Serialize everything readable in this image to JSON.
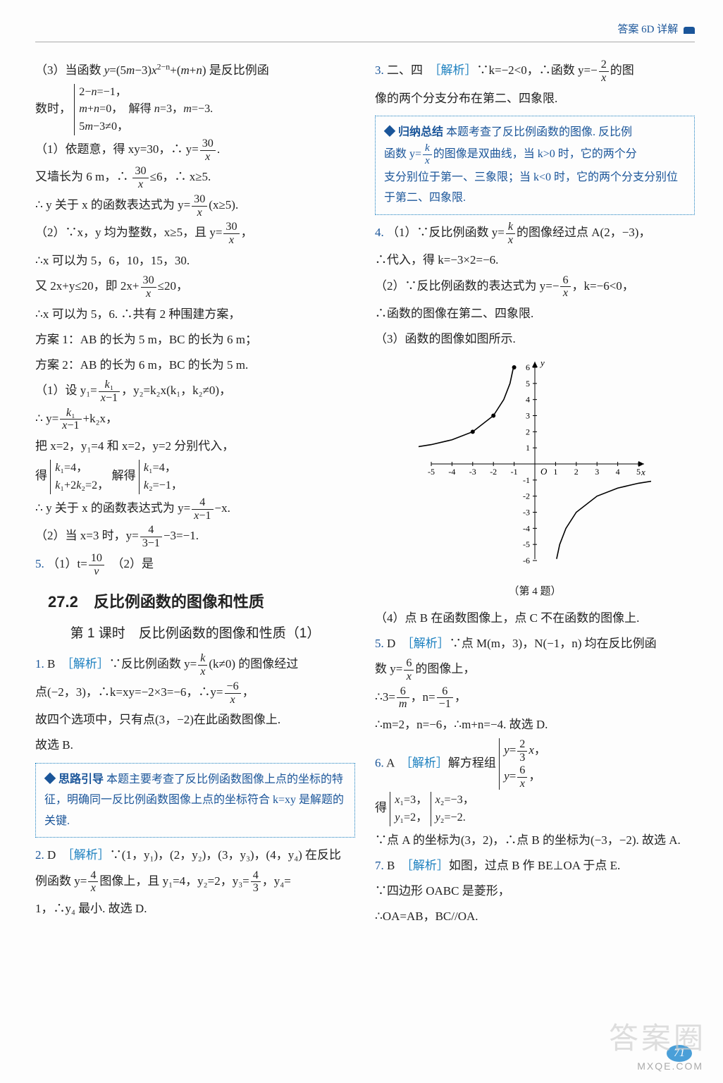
{
  "header": {
    "text": "答案 6D 详解"
  },
  "left": {
    "p01": "（3）当函数 y=(5m−3)x^{2−n}+(m+n) 是反比例函",
    "p02_pre": "数时，",
    "p02_cases": [
      "2−n=−1，",
      "m+n=0，  解得 n=3，m=−3.",
      "5m−3≠0，"
    ],
    "p03a": "（1）依题意，得 xy=30，∴ y=",
    "p03b": "又墙长为 6 m，∴ ",
    "p03c": "≤6，∴ x≥5.",
    "p04": "∴ y 关于 x 的函数表达式为 y=",
    "p04b": "(x≥5).",
    "p05": "（2）∵x，y 均为整数，x≥5，且 y=",
    "p06": "∴x 可以为 5，6，10，15，30.",
    "p07": "又 2x+y≤20，即 2x+",
    "p07b": "≤20，",
    "p08": "∴x 可以为 5，6. ∴共有 2 种围建方案，",
    "p09": "方案 1：AB 的长为 5 m，BC 的长为 6 m；",
    "p10": "方案 2：AB 的长为 6 m，BC 的长为 5 m.",
    "p11a": "（1）设 y₁=",
    "p11b": "，y₂=k₂x(k₁，k₂≠0)，",
    "p12": "∴ y=",
    "p12b": "+k₂x，",
    "p13": "把 x=2，y₁=4 和 x=2，y=2 分别代入，",
    "p14_pre": "得",
    "p14_c1": [
      "k₁=4，",
      "k₁+2k₂=2，"
    ],
    "p14_mid": "解得",
    "p14_c2": [
      "k₁=4，",
      "k₂=−1，"
    ],
    "p15": "∴ y 关于 x 的函数表达式为 y=",
    "p15b": "−x.",
    "p16": "（2）当 x=3 时，y=",
    "p16b": "−3=−1.",
    "q5": "5.",
    "q5a": "（1）t=",
    "q5b": "（2）是",
    "sect": "27.2　反比例函数的图像和性质",
    "sub": "第 1 课时　反比例函数的图像和性质（1）",
    "q1_n": "1.",
    "q1_ans": "B",
    "q1_label": "［解析］",
    "q1a": "∵反比例函数 y=",
    "q1b": "(k≠0) 的图像经过",
    "q1c": "点(−2，3)，∴k=xy=−2×3=−6，∴y=",
    "q1d": "故四个选项中，只有点(3，−2)在此函数图像上.",
    "q1e": "故选 B.",
    "box1_label": "◆ 思路引导",
    "box1_text": "本题主要考查了反比例函数图像上点的坐标的特征，明确同一反比例函数图像上点的坐标符合 k=xy 是解题的关键.",
    "q2_n": "2.",
    "q2_ans": "D",
    "q2_label": "［解析］",
    "q2a": "∵(1，y₁)，(2，y₂)，(3，y₃)，(4，y₄) 在反比",
    "q2b": "例函数 y=",
    "q2c": "图像上，且 y₁=4，y₂=2，y₃=",
    "q2d": "，y₄=",
    "q2e": "1，∴y₄ 最小. 故选 D."
  },
  "right": {
    "q3_n": "3.",
    "q3_ans": "二、四",
    "q3_label": "［解析］",
    "q3a": "∵k=−2<0，∴函数 y=−",
    "q3b": "的图",
    "q3c": "像的两个分支分布在第二、四象限.",
    "box2_label": "◆ 归纳总结",
    "box2_a": "本题考查了反比例函数的图像. 反比例",
    "box2_b": "函数 y=",
    "box2_c": "的图像是双曲线，当 k>0 时，它的两个分",
    "box2_d": "支分别位于第一、三象限；当 k<0 时，它的两个分支分别位于第二、四象限.",
    "q4_n": "4.",
    "q4a": "（1）∵反比例函数 y=",
    "q4b": "的图像经过点 A(2，−3)，",
    "q4c": "∴代入，得 k=−3×2=−6.",
    "q4d": "（2）∵反比例函数的表达式为 y=−",
    "q4e": "，k=−6<0，",
    "q4f": "∴函数的图像在第二、四象限.",
    "q4g": "（3）函数的图像如图所示.",
    "graph_caption": "（第 4 题）",
    "q4h": "（4）点 B 在函数图像上，点 C 不在函数的图像上.",
    "q5_n": "5.",
    "q5_ans": "D",
    "q5_label": "［解析］",
    "q5a": "∵点 M(m，3)，N(−1，n) 均在反比例函",
    "q5b": "数 y=",
    "q5c": "的图像上，",
    "q5d": "∴3=",
    "q5e": "，n=",
    "q5f": "∴m=2，n=−6，∴m+n=−4. 故选 D.",
    "q6_n": "6.",
    "q6_ans": "A",
    "q6_label": "［解析］",
    "q6a": "解方程组",
    "q6_cases": [
      "y= (2/3)x，",
      "y= 6/x，"
    ],
    "q6b_pre": "得",
    "q6b_c1": [
      "x₁=3，",
      "y₁=2，"
    ],
    "q6b_c2": [
      "x₂=−3，",
      "y₂=−2."
    ],
    "q6c": "∵点 A 的坐标为(3，2)，∴点 B 的坐标为(−3，−2). 故选 A.",
    "q7_n": "7.",
    "q7_ans": "B",
    "q7_label": "［解析］",
    "q7a": "如图，过点 B 作 BE⊥OA 于点 E.",
    "q7b": "∵四边形 OABC 是菱形，",
    "q7c": "∴OA=AB，BC//OA."
  },
  "graph": {
    "xmin": -5,
    "xmax": 5,
    "ymin": -6,
    "ymax": 6,
    "xticks": [
      -5,
      -4,
      -3,
      -2,
      -1,
      1,
      2,
      3,
      4,
      5
    ],
    "yticks": [
      -6,
      -5,
      -4,
      -3,
      -2,
      -1,
      1,
      2,
      3,
      4,
      5,
      6
    ],
    "curve1_x": [
      -6,
      -5,
      -4,
      -3,
      -2,
      -1.5,
      -1.2,
      -1.05
    ],
    "curve1_y": [
      1,
      1.2,
      1.5,
      2,
      3,
      4,
      5,
      5.9
    ],
    "curve2_x": [
      1.05,
      1.2,
      1.5,
      2,
      3,
      4,
      5,
      6
    ],
    "curve2_y": [
      -5.9,
      -5,
      -4,
      -3,
      -2,
      -1.5,
      -1.2,
      -1
    ],
    "pts": [
      [
        -1,
        6
      ],
      [
        -2,
        3
      ],
      [
        -3,
        2
      ]
    ],
    "axis_color": "#000",
    "curve_color": "#000",
    "pt_color": "#000"
  },
  "page_num": "71",
  "watermark": "答案圈",
  "wm_url": "MXQE.COM"
}
